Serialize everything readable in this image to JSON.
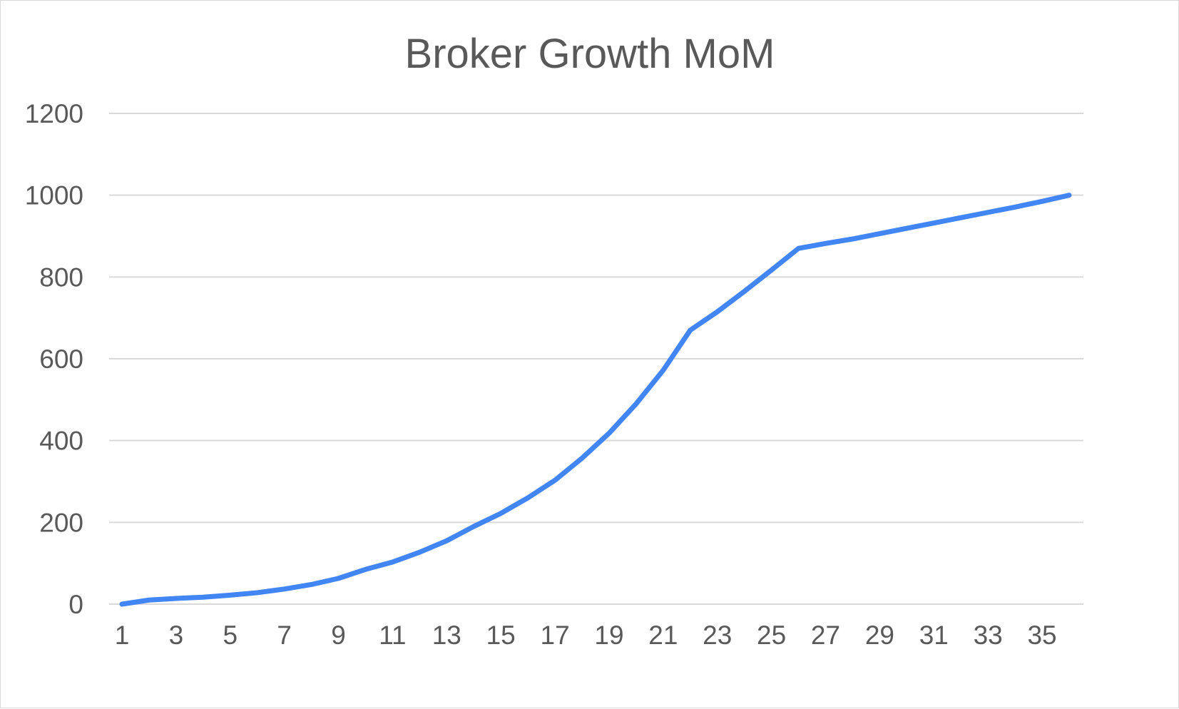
{
  "chart_data": {
    "type": "line",
    "title": "Broker Growth MoM",
    "xlabel": "",
    "ylabel": "",
    "x": [
      1,
      2,
      3,
      4,
      5,
      6,
      7,
      8,
      9,
      10,
      11,
      12,
      13,
      14,
      15,
      16,
      17,
      18,
      19,
      20,
      21,
      22,
      23,
      24,
      25,
      26,
      27,
      28,
      29,
      30,
      31,
      32,
      33,
      34,
      35,
      36
    ],
    "x_tick_labels": [
      "1",
      "3",
      "5",
      "7",
      "9",
      "11",
      "13",
      "15",
      "17",
      "19",
      "21",
      "23",
      "25",
      "27",
      "29",
      "31",
      "33",
      "35"
    ],
    "y_ticks": [
      0,
      200,
      400,
      600,
      800,
      1000,
      1200
    ],
    "ylim": [
      0,
      1200
    ],
    "grid": true,
    "legend": "none",
    "series": [
      {
        "color": "#4285f4",
        "values": [
          0,
          10,
          14,
          17,
          22,
          28,
          37,
          48,
          63,
          85,
          103,
          127,
          155,
          190,
          222,
          260,
          303,
          357,
          418,
          490,
          572,
          670,
          715,
          765,
          817,
          870,
          882,
          893,
          906,
          919,
          932,
          945,
          958,
          971,
          985,
          1000
        ]
      }
    ]
  }
}
